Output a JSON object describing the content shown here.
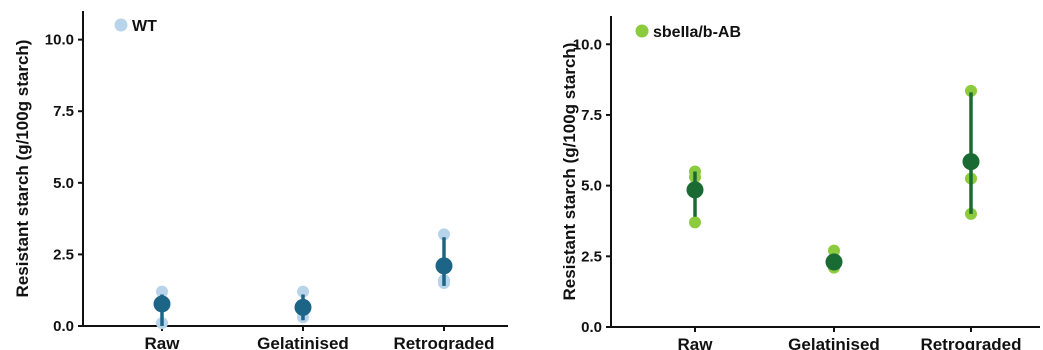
{
  "chart_data": [
    {
      "type": "scatter",
      "ylabel": "Resistant starch (g/100g starch)",
      "categories": [
        "Raw",
        "Gelatinised",
        "Retrograded"
      ],
      "ylim": [
        0,
        11
      ],
      "yticks": [
        "0.0",
        "2.5",
        "5.0",
        "7.5",
        "10.0"
      ],
      "legend": {
        "label": "WT",
        "position": "top-left"
      },
      "colors": {
        "replicate": "#b8d4ea",
        "mean": "#1d6587"
      },
      "series": [
        {
          "name": "WT",
          "replicates": [
            [
              1.2,
              0.8,
              0.1
            ],
            [
              1.2,
              0.5,
              0.3
            ],
            [
              3.2,
              1.6,
              1.5
            ]
          ],
          "means": [
            0.77,
            0.65,
            2.1
          ],
          "errors": [
            [
              0.0,
              1.1
            ],
            [
              0.2,
              1.1
            ],
            [
              1.4,
              3.1
            ]
          ]
        }
      ]
    },
    {
      "type": "scatter",
      "ylabel": "Resistant starch (g/100g starch)",
      "categories": [
        "Raw",
        "Gelatinised",
        "Retrograded"
      ],
      "ylim": [
        0,
        11
      ],
      "yticks": [
        "0.0",
        "2.5",
        "5.0",
        "7.5",
        "10.0"
      ],
      "legend": {
        "label": "sbeIIa/b-AB",
        "position": "top-left"
      },
      "colors": {
        "replicate": "#8ccb3e",
        "mean": "#1a6b33"
      },
      "series": [
        {
          "name": "sbeIIa/b-AB",
          "replicates": [
            [
              5.5,
              5.3,
              3.7
            ],
            [
              2.7,
              2.2,
              2.1
            ],
            [
              8.35,
              5.25,
              4.0
            ]
          ],
          "means": [
            4.85,
            2.3,
            5.85
          ],
          "errors": [
            [
              3.9,
              5.5
            ],
            [
              2.1,
              2.6
            ],
            [
              4.0,
              8.3
            ]
          ]
        }
      ]
    }
  ]
}
